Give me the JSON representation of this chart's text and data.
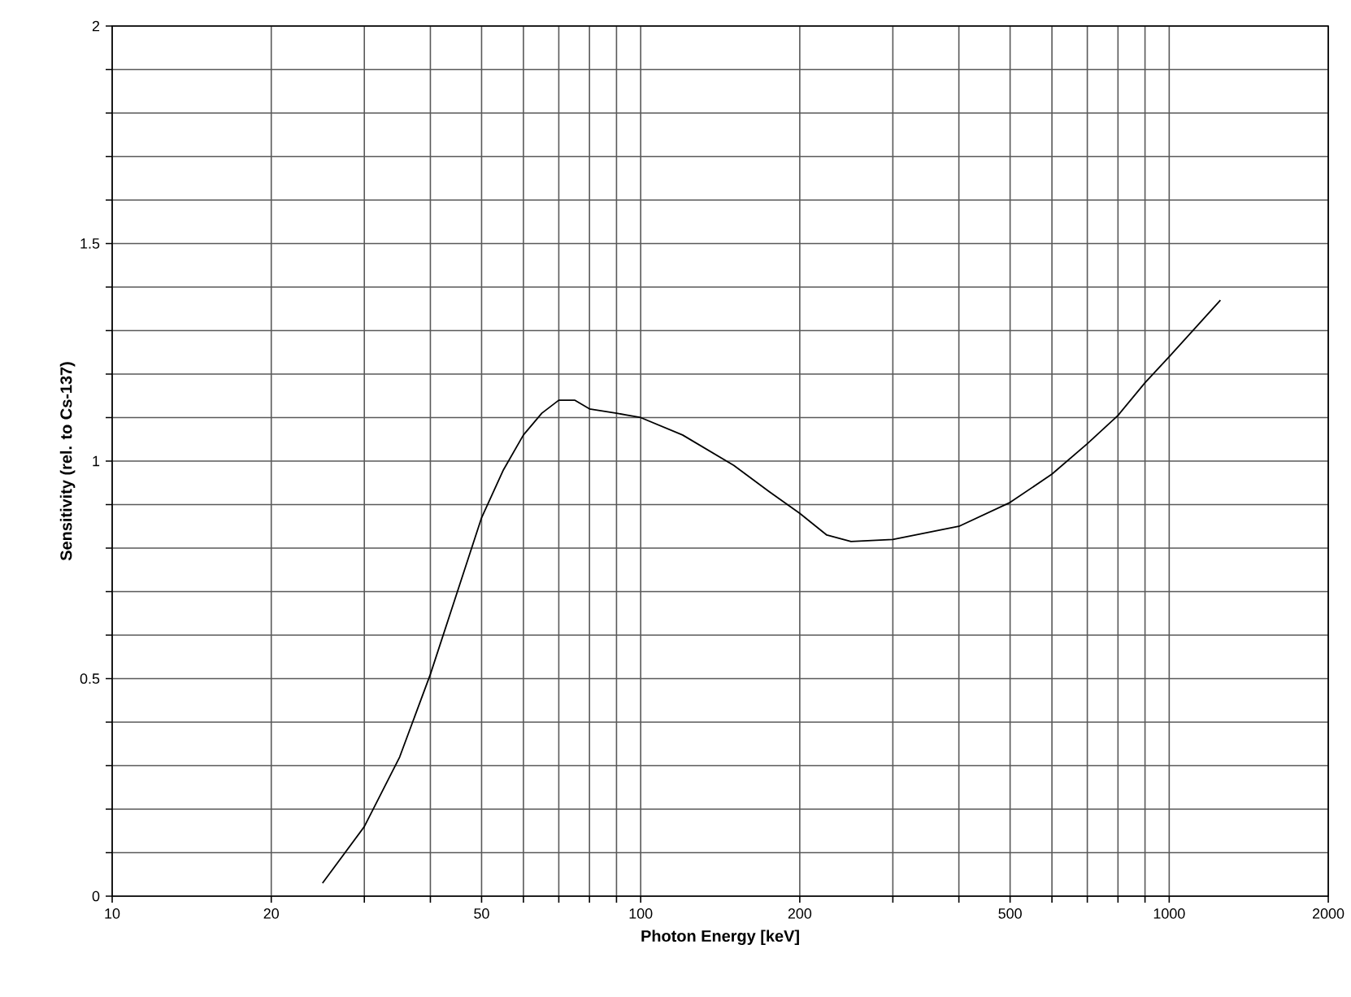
{
  "chart_data": {
    "type": "line",
    "xlabel": "Photon Energy [keV]",
    "ylabel": "Sensitivity (rel. to Cs-137)",
    "log": "x",
    "grid": true,
    "marker": "none",
    "line_style": "solid",
    "xlim": [
      10,
      2000
    ],
    "ylim": [
      0,
      2
    ],
    "xticks": [
      10,
      20,
      {
        "value": 30,
        "label": null
      },
      {
        "value": 40,
        "label": null
      },
      50,
      {
        "value": 60,
        "label": null
      },
      {
        "value": 70,
        "label": null
      },
      {
        "value": 80,
        "label": null
      },
      {
        "value": 90,
        "label": null
      },
      100,
      200,
      {
        "value": 300,
        "label": null
      },
      {
        "value": 400,
        "label": null
      },
      500,
      {
        "value": 600,
        "label": null
      },
      {
        "value": 700,
        "label": null
      },
      {
        "value": 800,
        "label": null
      },
      {
        "value": 900,
        "label": null
      },
      1000,
      2000
    ],
    "yticks": [
      0,
      {
        "value": 0.1,
        "label": null
      },
      {
        "value": 0.2,
        "label": null
      },
      {
        "value": 0.3,
        "label": null
      },
      {
        "value": 0.4,
        "label": null
      },
      0.5,
      {
        "value": 0.6,
        "label": null
      },
      {
        "value": 0.7,
        "label": null
      },
      {
        "value": 0.8,
        "label": null
      },
      {
        "value": 0.9,
        "label": null
      },
      1,
      {
        "value": 1.1,
        "label": null
      },
      {
        "value": 1.2,
        "label": null
      },
      {
        "value": 1.3,
        "label": null
      },
      {
        "value": 1.4,
        "label": null
      },
      1.5,
      {
        "value": 1.6,
        "label": null
      },
      {
        "value": 1.7,
        "label": null
      },
      {
        "value": 1.8,
        "label": null
      },
      {
        "value": 1.9,
        "label": null
      },
      2
    ],
    "series": [
      {
        "color": "#000000",
        "x": [
          25,
          30,
          35,
          40,
          45,
          50,
          55,
          60,
          65,
          70,
          75,
          80,
          90,
          100,
          120,
          150,
          175,
          200,
          225,
          250,
          300,
          400,
          500,
          600,
          700,
          800,
          900,
          1000,
          1250
        ],
        "values": [
          0.03,
          0.16,
          0.32,
          0.51,
          0.7,
          0.87,
          0.98,
          1.06,
          1.11,
          1.14,
          1.14,
          1.12,
          1.11,
          1.1,
          1.06,
          0.99,
          0.93,
          0.88,
          0.83,
          0.815,
          0.82,
          0.85,
          0.905,
          0.97,
          1.04,
          1.105,
          1.18,
          1.24,
          1.37
        ]
      }
    ]
  }
}
